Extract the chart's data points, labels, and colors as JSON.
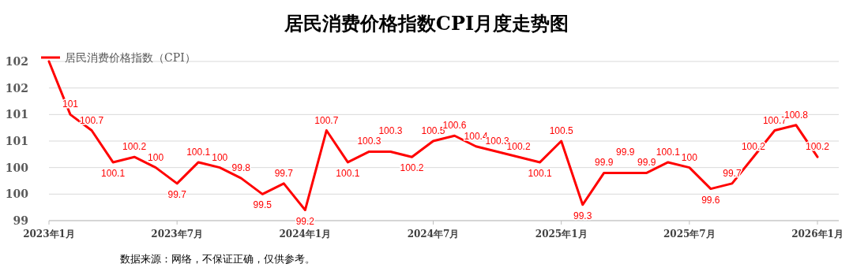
{
  "chart_data": {
    "type": "line",
    "title": "居民消费价格指数CPI月度走势图",
    "categories": [
      "2023年1月",
      null,
      null,
      null,
      null,
      null,
      "2023年7月",
      null,
      null,
      null,
      null,
      null,
      "2024年1月",
      null,
      null,
      null,
      null,
      null,
      "2024年7月",
      null,
      null,
      null,
      null,
      null,
      "2025年1月",
      null,
      null,
      null,
      null,
      null,
      "2025年7月",
      null,
      null,
      null,
      null,
      null,
      "2026年1月"
    ],
    "series": [
      {
        "name": "居民消费价格指数（CPI）",
        "color": "#ff0000",
        "values": [
          102,
          101,
          100.7,
          100.1,
          100.2,
          100,
          99.7,
          100.1,
          100,
          99.8,
          99.5,
          99.7,
          99.2,
          100.7,
          100.1,
          100.3,
          100.3,
          100.2,
          100.5,
          100.6,
          100.4,
          100.3,
          100.2,
          100.1,
          100.5,
          99.3,
          99.9,
          99.9,
          99.9,
          100.1,
          100,
          99.6,
          99.7,
          100.2,
          100.7,
          100.8,
          100.2
        ],
        "value_labels": [
          null,
          "101",
          "100.7",
          "100.1",
          "100.2",
          "100",
          "99.7",
          "100.1",
          "100",
          "99.8",
          "99.5",
          "99.7",
          "99.2",
          "100.7",
          "100.1",
          "100.3",
          "100.3",
          "100.2",
          "100.5",
          "100.6",
          "100.4",
          "100.3",
          "100.2",
          "100.1",
          "100.5",
          "99.3",
          "99.9",
          "99.9",
          "99.9",
          "100.1",
          "100",
          "99.6",
          "99.7",
          "100.2",
          "100.7",
          "100.8",
          "100.2"
        ]
      }
    ],
    "ylim": [
      99,
      102
    ],
    "yticks": [
      99,
      {
        "value": 99.5,
        "label": "100"
      },
      100,
      {
        "value": 100.5,
        "label": "101"
      },
      101,
      {
        "value": 101.5,
        "label": "102"
      },
      102
    ],
    "grid": "y",
    "legend": "top left",
    "marker": "none",
    "line_style": "solid",
    "annotations": [
      "数据来源：网络，不保证正确，仅供参考。"
    ]
  }
}
